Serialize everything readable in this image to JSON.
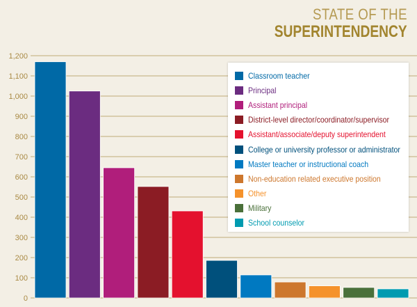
{
  "header": {
    "line1": "STATE OF THE",
    "line2": "SUPERINTENDENCY"
  },
  "chart_data": {
    "type": "bar",
    "title": "State of the Superintendency",
    "xlabel": "",
    "ylabel": "",
    "ylim": [
      0,
      1200
    ],
    "yticks": [
      0,
      100,
      200,
      300,
      400,
      500,
      600,
      700,
      800,
      900,
      1000,
      1100,
      1200
    ],
    "ytick_labels": [
      "0",
      "100",
      "200",
      "300",
      "400",
      "500",
      "600",
      "700",
      "800",
      "900",
      "1,000",
      "1,100",
      "1,200"
    ],
    "grid": true,
    "legend_position": "top-right",
    "categories": [
      "Classroom teacher",
      "Principal",
      "Assistant principal",
      "District-level director/coordinator/supervisor",
      "Assistant/associate/deputy superintendent",
      "College or university professor or administrator",
      "Master teacher or instructional coach",
      "Non-education related executive position",
      "Other",
      "Military",
      "School counselor"
    ],
    "values": [
      1170,
      1025,
      645,
      552,
      431,
      186,
      114,
      79,
      60,
      52,
      45
    ],
    "colors": [
      "#0069a6",
      "#6b2c80",
      "#b01e7b",
      "#8b1c24",
      "#e4112e",
      "#00507c",
      "#0079c1",
      "#cd772d",
      "#f5922b",
      "#4a703a",
      "#009bb0"
    ]
  }
}
